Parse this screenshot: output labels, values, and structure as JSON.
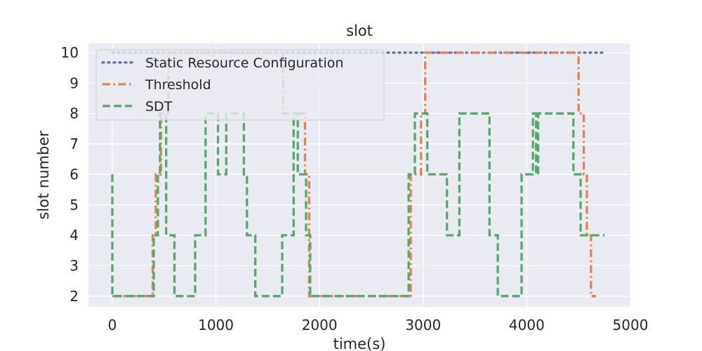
{
  "chart_data": {
    "type": "line",
    "title": "slot",
    "xlabel": "time(s)",
    "ylabel": "slot number",
    "xlim": [
      -230,
      5000
    ],
    "ylim": [
      1.65,
      10.3
    ],
    "xticks": [
      0,
      1000,
      2000,
      3000,
      4000,
      5000
    ],
    "yticks": [
      2,
      3,
      4,
      5,
      6,
      7,
      8,
      9,
      10
    ],
    "grid": true,
    "legend_position": "top-left",
    "colors": {
      "background": "#eaeaf2",
      "grid": "#ffffff"
    },
    "series": [
      {
        "name": "Static Resource Configuration",
        "color": "#4c72b0",
        "dash": "dotted",
        "x": [
          0,
          4750
        ],
        "y": [
          10,
          10
        ]
      },
      {
        "name": "Threshold",
        "color": "#dd8452",
        "dash": "dashdot",
        "x": [
          0,
          390,
          390,
          420,
          420,
          470,
          470,
          540,
          540,
          1650,
          1650,
          1860,
          1860,
          1900,
          1900,
          2880,
          2880,
          2980,
          2980,
          3020,
          3020,
          4500,
          4500,
          4550,
          4550,
          4580,
          4580,
          4620,
          4620,
          4670
        ],
        "y": [
          2,
          2,
          4,
          4,
          6,
          6,
          8,
          8,
          10,
          10,
          8,
          8,
          6,
          6,
          2,
          2,
          6,
          6,
          8,
          8,
          10,
          10,
          8,
          8,
          6,
          6,
          4,
          4,
          2,
          2
        ]
      },
      {
        "name": "SDT",
        "color": "#55a868",
        "dash": "dashed",
        "x": [
          0,
          0,
          400,
          400,
          440,
          440,
          460,
          460,
          520,
          520,
          600,
          600,
          800,
          800,
          900,
          900,
          1020,
          1020,
          1100,
          1100,
          1270,
          1270,
          1300,
          1300,
          1380,
          1380,
          1640,
          1640,
          1750,
          1750,
          1790,
          1790,
          1870,
          1870,
          1910,
          1910,
          2020,
          2020,
          2860,
          2860,
          2920,
          2920,
          3040,
          3040,
          3230,
          3230,
          3350,
          3350,
          3640,
          3640,
          3720,
          3720,
          3950,
          3950,
          4060,
          4060,
          4090,
          4090,
          4110,
          4110,
          4120,
          4120,
          4450,
          4450,
          4520,
          4520,
          4750
        ],
        "y": [
          6,
          2,
          2,
          4,
          4,
          6,
          6,
          8,
          8,
          4,
          4,
          2,
          2,
          4,
          4,
          8,
          8,
          6,
          6,
          8,
          8,
          6,
          6,
          4,
          4,
          2,
          2,
          4,
          4,
          8,
          8,
          6,
          6,
          4,
          4,
          2,
          2,
          2,
          2,
          6,
          6,
          8,
          8,
          6,
          6,
          4,
          4,
          8,
          8,
          4,
          4,
          2,
          2,
          6,
          6,
          8,
          8,
          6,
          6,
          8,
          8,
          8,
          8,
          6,
          6,
          4,
          4
        ]
      }
    ]
  }
}
